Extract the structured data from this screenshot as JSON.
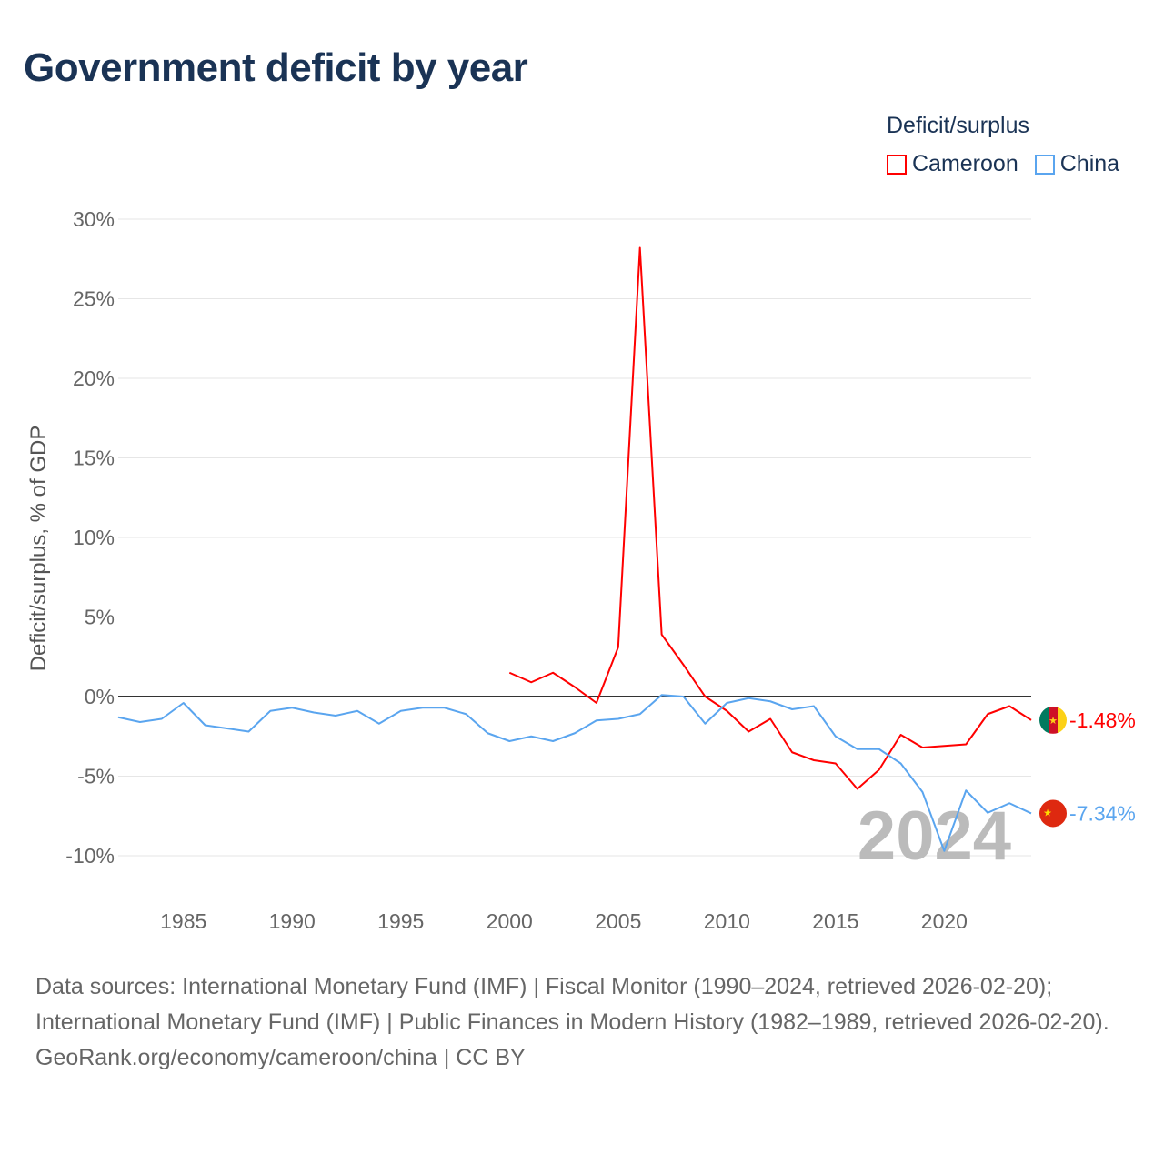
{
  "title": "Government deficit by year",
  "legend": {
    "title": "Deficit/surplus",
    "items": [
      {
        "label": "Cameroon",
        "color": "#ff0000"
      },
      {
        "label": "China",
        "color": "#5aa5ef"
      }
    ]
  },
  "watermark_year": "2024",
  "end_labels": {
    "cameroon": "-1.48%",
    "china": "-7.34%"
  },
  "footer": {
    "sources": "Data sources: International Monetary Fund (IMF) | Fiscal Monitor (1990–2024, retrieved 2026-02-20); International Monetary Fund (IMF) | Public Finances in Modern History (1982–1989, retrieved 2026-02-20).",
    "credit": "GeoRank.org/economy/cameroon/china | CC BY"
  },
  "chart_data": {
    "type": "line",
    "title": "Government deficit by year",
    "xlabel": "",
    "ylabel": "Deficit/surplus, % of GDP",
    "xlim": [
      1982,
      2024
    ],
    "ylim": [
      -12,
      30
    ],
    "y_ticks": [
      30,
      25,
      20,
      15,
      10,
      5,
      0,
      -5,
      -10
    ],
    "y_tick_labels": [
      "30%",
      "25%",
      "20%",
      "15%",
      "10%",
      "5%",
      "0%",
      "-5%",
      "-10%"
    ],
    "x_ticks": [
      1985,
      1990,
      1995,
      2000,
      2005,
      2010,
      2015,
      2020
    ],
    "x_tick_labels": [
      "1985",
      "1990",
      "1995",
      "2000",
      "2005",
      "2010",
      "2015",
      "2020"
    ],
    "grid": true,
    "legend_position": "top-right",
    "series": [
      {
        "name": "Cameroon",
        "color": "#ff0000",
        "x": [
          2000,
          2001,
          2002,
          2003,
          2004,
          2005,
          2006,
          2007,
          2008,
          2009,
          2010,
          2011,
          2012,
          2013,
          2014,
          2015,
          2016,
          2017,
          2018,
          2019,
          2020,
          2021,
          2022,
          2023,
          2024
        ],
        "values": [
          1.5,
          0.9,
          1.5,
          0.6,
          -0.4,
          3.1,
          28.2,
          3.9,
          2.0,
          0.0,
          -0.9,
          -2.2,
          -1.4,
          -3.5,
          -4.0,
          -4.2,
          -5.8,
          -4.6,
          -2.4,
          -3.2,
          -3.1,
          -3.0,
          -1.1,
          -0.6,
          -1.48
        ]
      },
      {
        "name": "China",
        "color": "#5aa5ef",
        "x": [
          1982,
          1983,
          1984,
          1985,
          1986,
          1987,
          1988,
          1989,
          1990,
          1991,
          1992,
          1993,
          1994,
          1995,
          1996,
          1997,
          1998,
          1999,
          2000,
          2001,
          2002,
          2003,
          2004,
          2005,
          2006,
          2007,
          2008,
          2009,
          2010,
          2011,
          2012,
          2013,
          2014,
          2015,
          2016,
          2017,
          2018,
          2019,
          2020,
          2021,
          2022,
          2023,
          2024
        ],
        "values": [
          -1.3,
          -1.6,
          -1.4,
          -0.4,
          -1.8,
          -2.0,
          -2.2,
          -0.9,
          -0.7,
          -1.0,
          -1.2,
          -0.9,
          -1.7,
          -0.9,
          -0.7,
          -0.7,
          -1.1,
          -2.3,
          -2.8,
          -2.5,
          -2.8,
          -2.3,
          -1.5,
          -1.4,
          -1.1,
          0.1,
          0.0,
          -1.7,
          -0.4,
          -0.1,
          -0.3,
          -0.8,
          -0.6,
          -2.5,
          -3.3,
          -3.3,
          -4.2,
          -6.0,
          -9.7,
          -5.9,
          -7.3,
          -6.7,
          -7.34
        ]
      }
    ]
  }
}
